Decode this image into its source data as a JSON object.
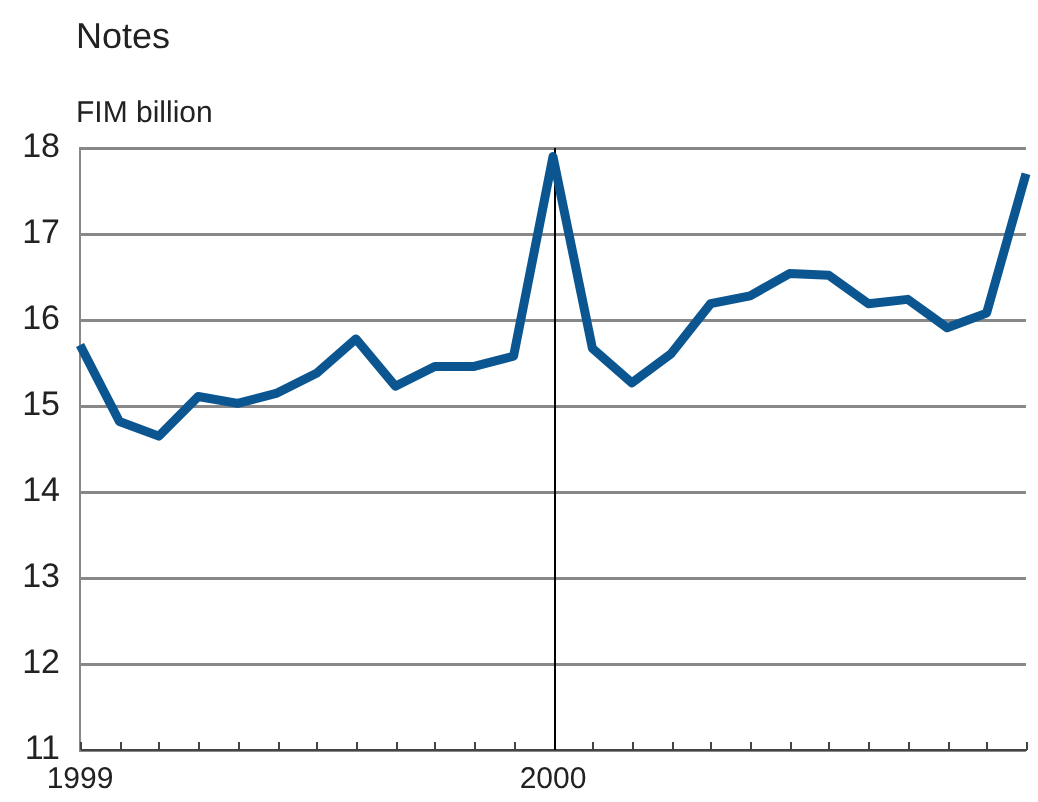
{
  "chart_data": {
    "type": "line",
    "title": "Notes",
    "ylabel": "FIM billion",
    "categories": [
      "1999",
      null,
      null,
      null,
      null,
      null,
      null,
      null,
      null,
      null,
      null,
      null,
      "2000",
      null,
      null,
      null,
      null,
      null,
      null,
      null,
      null,
      null,
      null,
      null,
      null
    ],
    "series": [
      {
        "color": "#0b5690",
        "values": [
          15.71,
          14.82,
          14.65,
          15.11,
          15.03,
          15.15,
          15.38,
          15.78,
          15.23,
          15.46,
          15.46,
          15.58,
          17.9,
          15.67,
          15.27,
          15.61,
          16.19,
          16.28,
          16.54,
          16.52,
          16.19,
          16.24,
          15.91,
          16.08,
          17.7
        ]
      }
    ],
    "ylim": [
      11,
      18
    ],
    "yticks": [
      11,
      12,
      13,
      14,
      15,
      16,
      17,
      18
    ],
    "ref_lines": [
      {
        "axis": "x",
        "value": "2000",
        "color": "#000000"
      }
    ],
    "grid": "y",
    "legend": false,
    "marker": "none"
  }
}
